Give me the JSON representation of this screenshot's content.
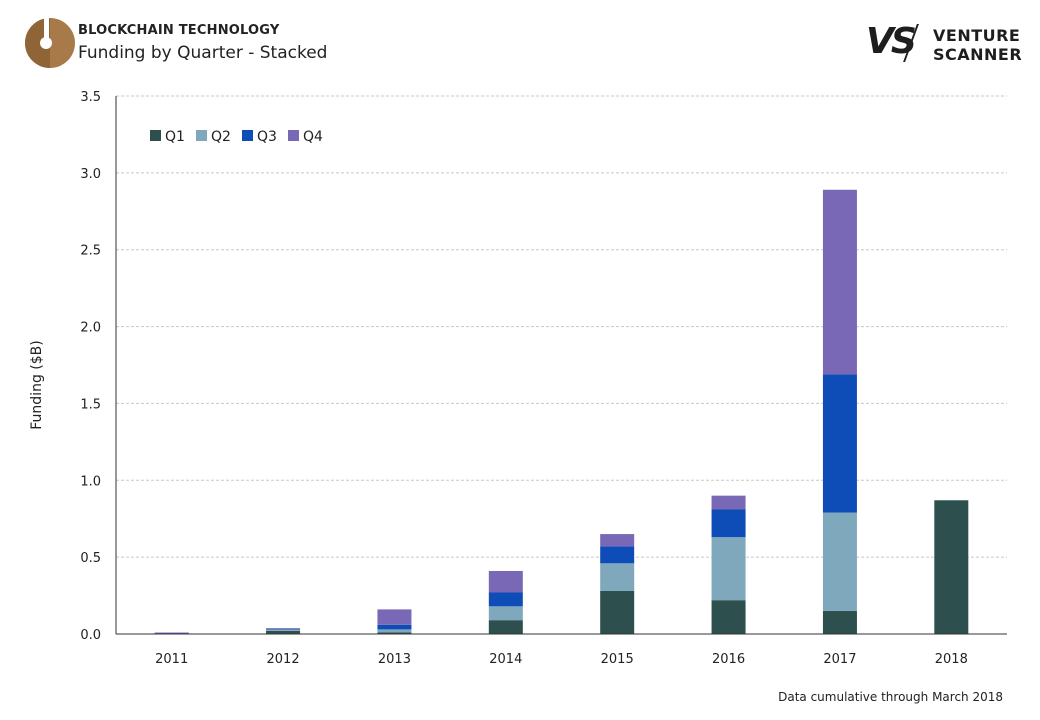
{
  "header": {
    "kicker": "BLOCKCHAIN TECHNOLOGY",
    "title": "Funding by Quarter - Stacked"
  },
  "brand": {
    "mark": "VS",
    "line1": "VENTURE",
    "line2": "SCANNER"
  },
  "footnote": "Data cumulative through March 2018",
  "colors": {
    "Q1": "#2d4f4e",
    "Q2": "#7fa8bd",
    "Q3": "#0e4db8",
    "Q4": "#7868b6",
    "gridline": "#c8c8c8",
    "logo": "#a87a4a"
  },
  "chart_data": {
    "type": "bar",
    "stacked": true,
    "title": "Funding by Quarter - Stacked",
    "xlabel": "",
    "ylabel": "Funding ($B)",
    "ylim": [
      0,
      3.5
    ],
    "yticks": [
      "0.0",
      "0.5",
      "1.0",
      "1.5",
      "2.0",
      "2.5",
      "3.0",
      "3.5"
    ],
    "grid": true,
    "legend_position": "top-left",
    "categories": [
      "2011",
      "2012",
      "2013",
      "2014",
      "2015",
      "2016",
      "2017",
      "2018"
    ],
    "series": [
      {
        "name": "Q1",
        "values": [
          0.005,
          0.02,
          0.01,
          0.09,
          0.28,
          0.22,
          0.15,
          0.87
        ]
      },
      {
        "name": "Q2",
        "values": [
          0.002,
          0.01,
          0.02,
          0.09,
          0.18,
          0.41,
          0.64,
          0
        ]
      },
      {
        "name": "Q3",
        "values": [
          0.001,
          0.005,
          0.03,
          0.09,
          0.11,
          0.18,
          0.9,
          0
        ]
      },
      {
        "name": "Q4",
        "values": [
          0.001,
          0.003,
          0.1,
          0.14,
          0.08,
          0.09,
          1.2,
          0
        ]
      }
    ]
  }
}
